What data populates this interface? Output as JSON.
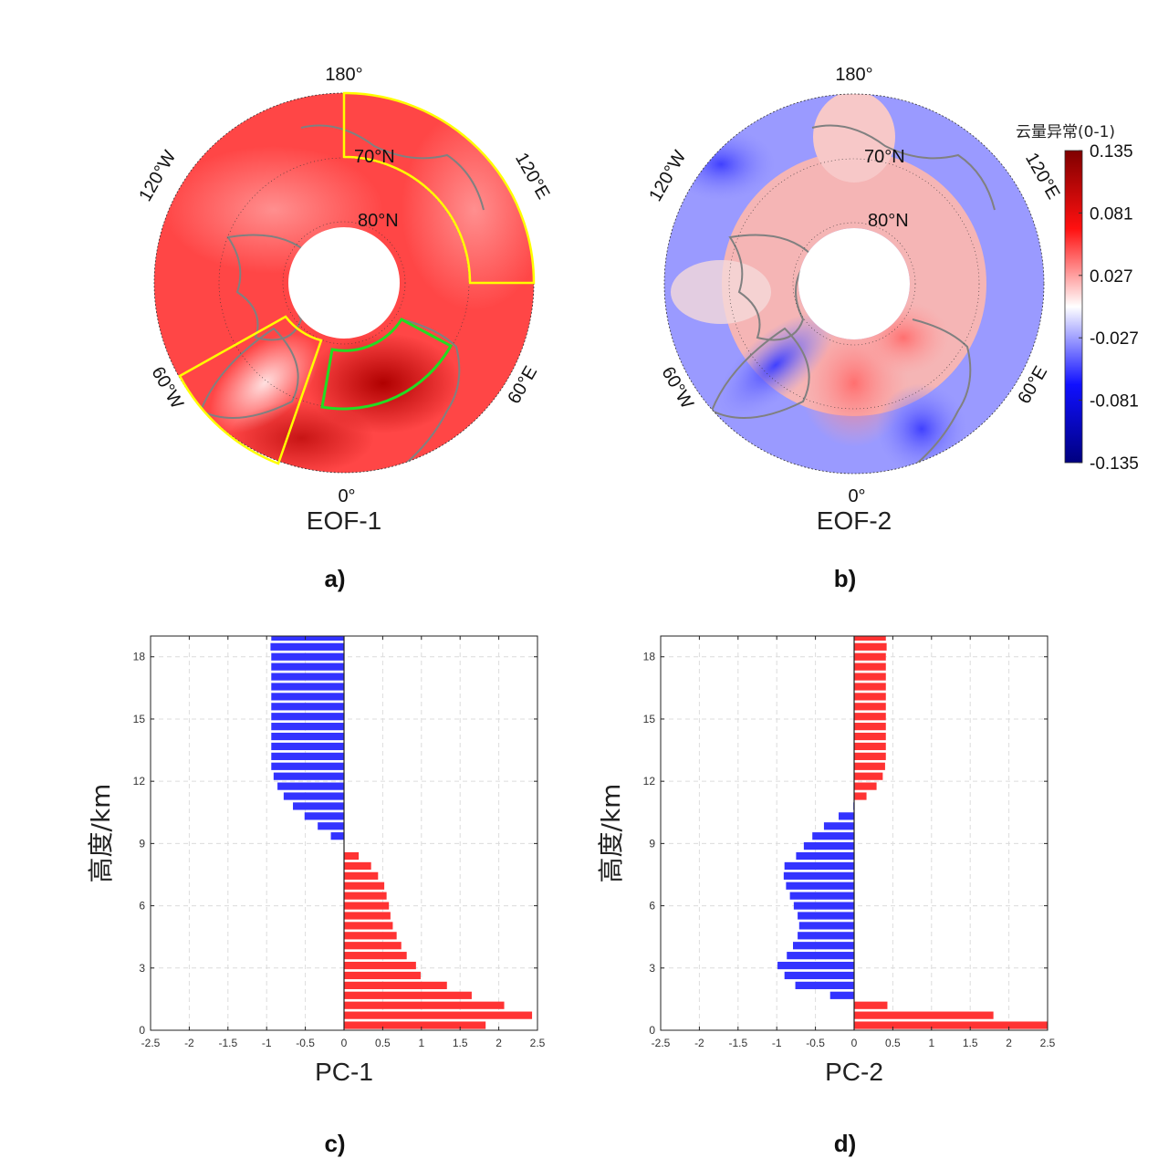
{
  "maps": [
    {
      "title": "EOF-1",
      "panel": "a)",
      "lon_labels": [
        "180°",
        "120°E",
        "60°E",
        "0°",
        "60°W",
        "120°W"
      ],
      "lat_labels": [
        "70°N",
        "80°N"
      ]
    },
    {
      "title": "EOF-2",
      "panel": "b)",
      "lon_labels": [
        "180°",
        "120°E",
        "60°E",
        "0°",
        "60°W",
        "120°W"
      ],
      "lat_labels": [
        "70°N",
        "80°N"
      ]
    }
  ],
  "colorbar": {
    "title": "云量异常(0-1)",
    "ticks": [
      "0.135",
      "0.081",
      "0.027",
      "-0.027",
      "-0.081",
      "-0.135"
    ],
    "range": [
      -0.135,
      0.135
    ],
    "colors": {
      "max": "#7f0000",
      "high": "#ff1a1a",
      "mid": "#ffffff",
      "low": "#1a1aff",
      "min": "#00007f"
    }
  },
  "chart_data": [
    {
      "type": "bar",
      "orientation": "horizontal",
      "panel": "c)",
      "title": "",
      "xlabel": "PC-1",
      "ylabel": "高度/km",
      "xlim": [
        -2.5,
        2.5
      ],
      "ylim": [
        0,
        19
      ],
      "xticks": [
        "-2.5",
        "-2",
        "-1.5",
        "-1",
        "-0.5",
        "0",
        "0.5",
        "1",
        "1.5",
        "2",
        "2.5"
      ],
      "yticks": [
        "0",
        "3",
        "6",
        "9",
        "12",
        "15",
        "18"
      ],
      "grid": true,
      "positive_color": "#ff3333",
      "negative_color": "#3333ff",
      "heights": [
        0.24,
        0.72,
        1.2,
        1.68,
        2.16,
        2.64,
        3.12,
        3.6,
        4.08,
        4.56,
        5.04,
        5.52,
        6.0,
        6.48,
        6.96,
        7.44,
        7.92,
        8.4,
        8.88,
        9.36,
        9.84,
        10.32,
        10.8,
        11.28,
        11.76,
        12.24,
        12.72,
        13.2,
        13.68,
        14.16,
        14.64,
        15.12,
        15.6,
        16.08,
        16.56,
        17.04,
        17.52,
        18.0,
        18.48,
        18.96
      ],
      "values": [
        1.83,
        2.43,
        2.07,
        1.65,
        1.33,
        0.99,
        0.93,
        0.81,
        0.74,
        0.68,
        0.63,
        0.6,
        0.58,
        0.55,
        0.52,
        0.44,
        0.35,
        0.19,
        0.0,
        -0.17,
        -0.34,
        -0.51,
        -0.66,
        -0.78,
        -0.86,
        -0.91,
        -0.94,
        -0.94,
        -0.94,
        -0.94,
        -0.94,
        -0.94,
        -0.94,
        -0.94,
        -0.94,
        -0.94,
        -0.94,
        -0.94,
        -0.95,
        -0.94
      ]
    },
    {
      "type": "bar",
      "orientation": "horizontal",
      "panel": "d)",
      "title": "",
      "xlabel": "PC-2",
      "ylabel": "高度/km",
      "xlim": [
        -2.5,
        2.5
      ],
      "ylim": [
        0,
        19
      ],
      "xticks": [
        "-2.5",
        "-2",
        "-1.5",
        "-1",
        "-0.5",
        "0",
        "0.5",
        "1",
        "1.5",
        "2",
        "2.5"
      ],
      "yticks": [
        "0",
        "3",
        "6",
        "9",
        "12",
        "15",
        "18"
      ],
      "grid": true,
      "positive_color": "#ff3333",
      "negative_color": "#3333ff",
      "heights": [
        0.24,
        0.72,
        1.2,
        1.68,
        2.16,
        2.64,
        3.12,
        3.6,
        4.08,
        4.56,
        5.04,
        5.52,
        6.0,
        6.48,
        6.96,
        7.44,
        7.92,
        8.4,
        8.88,
        9.36,
        9.84,
        10.32,
        10.8,
        11.28,
        11.76,
        12.24,
        12.72,
        13.2,
        13.68,
        14.16,
        14.64,
        15.12,
        15.6,
        16.08,
        16.56,
        17.04,
        17.52,
        18.0,
        18.48,
        18.96
      ],
      "values": [
        2.6,
        1.8,
        0.43,
        -0.31,
        -0.76,
        -0.9,
        -0.99,
        -0.87,
        -0.79,
        -0.73,
        -0.71,
        -0.73,
        -0.78,
        -0.83,
        -0.88,
        -0.91,
        -0.9,
        -0.75,
        -0.65,
        -0.54,
        -0.39,
        -0.2,
        -0.01,
        0.16,
        0.29,
        0.37,
        0.4,
        0.41,
        0.41,
        0.41,
        0.41,
        0.41,
        0.41,
        0.41,
        0.41,
        0.41,
        0.41,
        0.41,
        0.42,
        0.41
      ]
    }
  ]
}
